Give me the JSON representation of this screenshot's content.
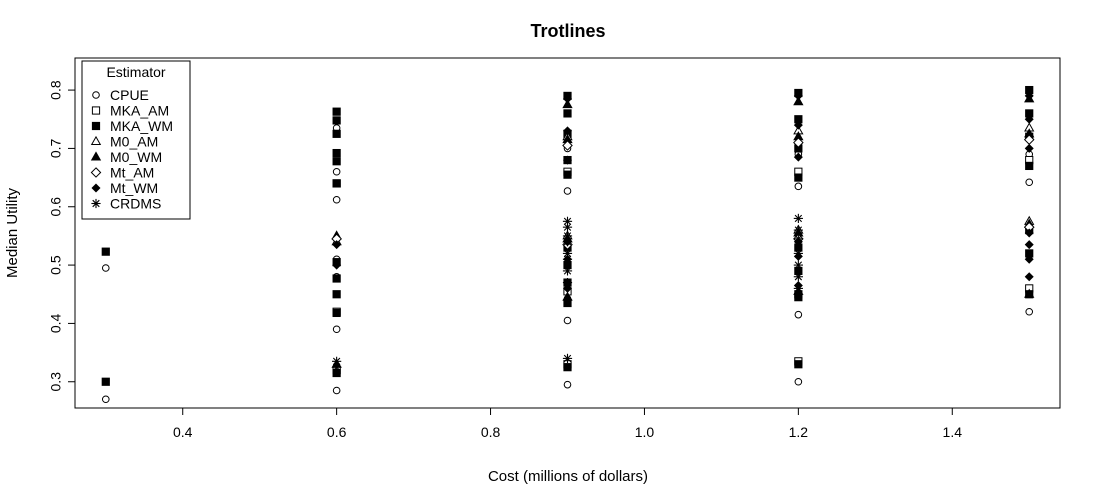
{
  "chart_data": {
    "type": "scatter",
    "title": "Trotlines",
    "xlabel": "Cost (millions of dollars)",
    "ylabel": "Median Utility",
    "xlim": [
      0.26,
      1.54
    ],
    "ylim": [
      0.255,
      0.855
    ],
    "x_ticks": [
      "0.4",
      "0.6",
      "0.8",
      "1.0",
      "1.2",
      "1.4"
    ],
    "y_ticks": [
      "0.3",
      "0.4",
      "0.5",
      "0.6",
      "0.7",
      "0.8"
    ],
    "grid": false,
    "legend_position": "top-left",
    "legend_title": "Estimator",
    "series": [
      {
        "name": "CPUE",
        "marker": "circle-open",
        "points": [
          [
            0.3,
            0.27
          ],
          [
            0.3,
            0.495
          ],
          [
            0.6,
            0.285
          ],
          [
            0.6,
            0.39
          ],
          [
            0.6,
            0.48
          ],
          [
            0.6,
            0.51
          ],
          [
            0.6,
            0.612
          ],
          [
            0.6,
            0.66
          ],
          [
            0.6,
            0.735
          ],
          [
            0.9,
            0.295
          ],
          [
            0.9,
            0.405
          ],
          [
            0.9,
            0.627
          ],
          [
            0.9,
            0.7
          ],
          [
            1.2,
            0.3
          ],
          [
            1.2,
            0.415
          ],
          [
            1.2,
            0.635
          ],
          [
            1.2,
            0.69
          ],
          [
            1.5,
            0.42
          ],
          [
            1.5,
            0.642
          ],
          [
            1.5,
            0.69
          ]
        ]
      },
      {
        "name": "MKA_AM",
        "marker": "square-open",
        "points": [
          [
            0.6,
            0.32
          ],
          [
            0.6,
            0.42
          ],
          [
            0.6,
            0.64
          ],
          [
            0.9,
            0.33
          ],
          [
            0.9,
            0.455
          ],
          [
            0.9,
            0.66
          ],
          [
            1.2,
            0.335
          ],
          [
            1.2,
            0.45
          ],
          [
            1.2,
            0.66
          ],
          [
            1.5,
            0.46
          ],
          [
            1.5,
            0.68
          ]
        ]
      },
      {
        "name": "MKA_WM",
        "marker": "square-filled",
        "points": [
          [
            0.3,
            0.3
          ],
          [
            0.3,
            0.523
          ],
          [
            0.6,
            0.315
          ],
          [
            0.6,
            0.418
          ],
          [
            0.6,
            0.45
          ],
          [
            0.6,
            0.477
          ],
          [
            0.6,
            0.505
          ],
          [
            0.6,
            0.64
          ],
          [
            0.6,
            0.678
          ],
          [
            0.6,
            0.692
          ],
          [
            0.6,
            0.725
          ],
          [
            0.6,
            0.748
          ],
          [
            0.6,
            0.763
          ],
          [
            0.9,
            0.325
          ],
          [
            0.9,
            0.435
          ],
          [
            0.9,
            0.47
          ],
          [
            0.9,
            0.5
          ],
          [
            0.9,
            0.53
          ],
          [
            0.9,
            0.655
          ],
          [
            0.9,
            0.68
          ],
          [
            0.9,
            0.725
          ],
          [
            0.9,
            0.76
          ],
          [
            0.9,
            0.79
          ],
          [
            1.2,
            0.33
          ],
          [
            1.2,
            0.445
          ],
          [
            1.2,
            0.49
          ],
          [
            1.2,
            0.53
          ],
          [
            1.2,
            0.65
          ],
          [
            1.2,
            0.7
          ],
          [
            1.2,
            0.75
          ],
          [
            1.2,
            0.795
          ],
          [
            1.5,
            0.45
          ],
          [
            1.5,
            0.52
          ],
          [
            1.5,
            0.56
          ],
          [
            1.5,
            0.67
          ],
          [
            1.5,
            0.72
          ],
          [
            1.5,
            0.76
          ],
          [
            1.5,
            0.8
          ]
        ]
      },
      {
        "name": "M0_AM",
        "marker": "triangle-open",
        "points": [
          [
            0.6,
            0.54
          ],
          [
            0.9,
            0.55
          ],
          [
            0.9,
            0.72
          ],
          [
            1.2,
            0.56
          ],
          [
            1.2,
            0.73
          ],
          [
            1.5,
            0.575
          ],
          [
            1.5,
            0.735
          ]
        ]
      },
      {
        "name": "M0_WM",
        "marker": "triangle-filled",
        "points": [
          [
            0.6,
            0.55
          ],
          [
            0.6,
            0.33
          ],
          [
            0.9,
            0.445
          ],
          [
            0.9,
            0.545
          ],
          [
            0.9,
            0.715
          ],
          [
            0.9,
            0.775
          ],
          [
            1.2,
            0.455
          ],
          [
            1.2,
            0.555
          ],
          [
            1.2,
            0.72
          ],
          [
            1.2,
            0.78
          ],
          [
            1.5,
            0.45
          ],
          [
            1.5,
            0.57
          ],
          [
            1.5,
            0.725
          ],
          [
            1.5,
            0.785
          ]
        ]
      },
      {
        "name": "Mt_AM",
        "marker": "diamond-open",
        "points": [
          [
            0.6,
            0.545
          ],
          [
            0.9,
            0.535
          ],
          [
            0.9,
            0.705
          ],
          [
            1.2,
            0.545
          ],
          [
            1.2,
            0.71
          ],
          [
            1.5,
            0.565
          ],
          [
            1.5,
            0.715
          ]
        ]
      },
      {
        "name": "Mt_WM",
        "marker": "diamond-filled",
        "points": [
          [
            0.6,
            0.5
          ],
          [
            0.6,
            0.535
          ],
          [
            0.9,
            0.46
          ],
          [
            0.9,
            0.51
          ],
          [
            0.9,
            0.54
          ],
          [
            0.9,
            0.68
          ],
          [
            0.9,
            0.73
          ],
          [
            0.9,
            0.785
          ],
          [
            1.2,
            0.465
          ],
          [
            1.2,
            0.515
          ],
          [
            1.2,
            0.54
          ],
          [
            1.2,
            0.685
          ],
          [
            1.2,
            0.74
          ],
          [
            1.2,
            0.79
          ],
          [
            1.5,
            0.48
          ],
          [
            1.5,
            0.51
          ],
          [
            1.5,
            0.535
          ],
          [
            1.5,
            0.555
          ],
          [
            1.5,
            0.7
          ],
          [
            1.5,
            0.75
          ],
          [
            1.5,
            0.79
          ]
        ]
      },
      {
        "name": "CRDMS",
        "marker": "asterisk",
        "points": [
          [
            0.6,
            0.335
          ],
          [
            0.6,
            0.325
          ],
          [
            0.9,
            0.34
          ],
          [
            0.9,
            0.44
          ],
          [
            0.9,
            0.47
          ],
          [
            0.9,
            0.49
          ],
          [
            0.9,
            0.51
          ],
          [
            0.9,
            0.52
          ],
          [
            0.9,
            0.54
          ],
          [
            0.9,
            0.55
          ],
          [
            0.9,
            0.565
          ],
          [
            0.9,
            0.575
          ],
          [
            1.2,
            0.46
          ],
          [
            1.2,
            0.48
          ],
          [
            1.2,
            0.5
          ],
          [
            1.2,
            0.52
          ],
          [
            1.2,
            0.545
          ],
          [
            1.2,
            0.56
          ],
          [
            1.2,
            0.58
          ]
        ]
      }
    ]
  }
}
